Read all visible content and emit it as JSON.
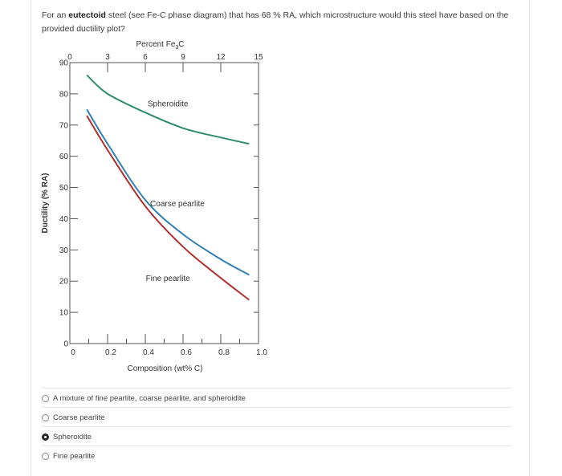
{
  "question": {
    "prefix": "For an ",
    "bold": "eutectoid",
    "suffix": " steel (see Fe-C phase diagram) that has 68 % RA, which microstructure would this steel have based on the provided ductility plot?"
  },
  "chart_data": {
    "type": "line",
    "xlabel": "Composition (wt% C)",
    "ylabel": "Ductility (% RA)",
    "top_axis_label": "Percent Fe3C",
    "top_axis_label_main": "Percent Fe",
    "top_axis_label_sub": "3",
    "top_axis_label_end": "C",
    "xlim": [
      0,
      1.0
    ],
    "ylim": [
      0,
      90
    ],
    "x_ticks": [
      "0",
      "0.2",
      "0.4",
      "0.6",
      "0.8",
      "1.0"
    ],
    "x_tick_values": [
      0,
      0.2,
      0.4,
      0.6,
      0.8,
      1.0
    ],
    "y_ticks": [
      "0",
      "10",
      "20",
      "30",
      "40",
      "50",
      "60",
      "70",
      "80",
      "90"
    ],
    "y_tick_values": [
      0,
      10,
      20,
      30,
      40,
      50,
      60,
      70,
      80,
      90
    ],
    "top_ticks": [
      "0",
      "3",
      "6",
      "9",
      "12",
      "15"
    ],
    "top_tick_values": [
      0,
      0.2,
      0.4,
      0.6,
      0.8,
      1.0
    ],
    "grid": false,
    "series": [
      {
        "name": "Spheroidite",
        "color": "#2e8b6f",
        "x": [
          0.09,
          0.2,
          0.4,
          0.6,
          0.8,
          0.95
        ],
        "y": [
          86,
          80,
          74,
          69,
          66,
          64
        ]
      },
      {
        "name": "Coarse pearlite",
        "color": "#2f7fb8",
        "x": [
          0.09,
          0.2,
          0.4,
          0.6,
          0.8,
          0.95
        ],
        "y": [
          75,
          64,
          46,
          35,
          27,
          22
        ]
      },
      {
        "name": "Fine pearlite",
        "color": "#b03030",
        "x": [
          0.09,
          0.2,
          0.4,
          0.6,
          0.8,
          0.95
        ],
        "y": [
          73,
          62,
          44,
          31,
          21,
          14
        ]
      }
    ],
    "annotations": [
      {
        "text": "Spheroidite",
        "x": 0.52,
        "y": 76
      },
      {
        "text": "Coarse pearlite",
        "x": 0.57,
        "y": 44
      },
      {
        "text": "Fine pearlite",
        "x": 0.52,
        "y": 20
      }
    ]
  },
  "options": [
    {
      "label": "A mixture of fine pearlite, coarse pearlite, and spheroidite",
      "selected": false
    },
    {
      "label": "Coarse pearlite",
      "selected": false
    },
    {
      "label": "Spheroidite",
      "selected": true
    },
    {
      "label": "Fine pearlite",
      "selected": false
    }
  ]
}
